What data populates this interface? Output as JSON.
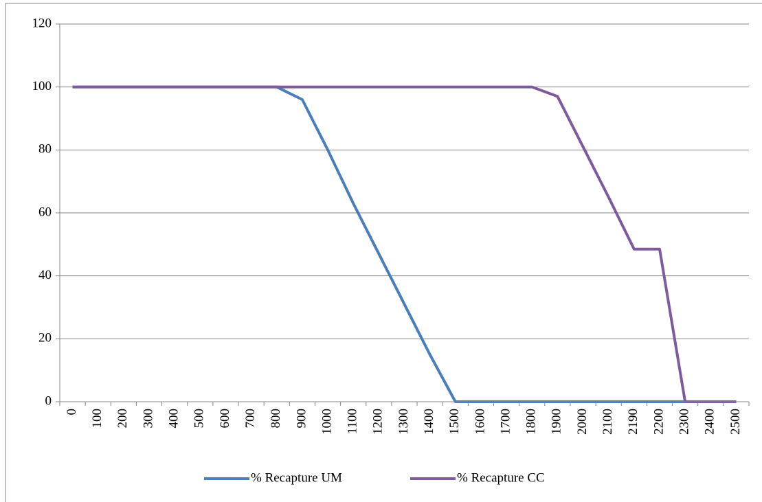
{
  "chart_data": {
    "type": "line",
    "categories": [
      "0",
      "100",
      "200",
      "300",
      "400",
      "500",
      "600",
      "700",
      "800",
      "900",
      "1000",
      "1100",
      "1200",
      "1300",
      "1400",
      "1500",
      "1600",
      "1700",
      "1800",
      "1900",
      "2000",
      "2100",
      "2190",
      "2200",
      "2300",
      "2400",
      "2500"
    ],
    "series": [
      {
        "name": "% Recapture UM",
        "color": "#4a7ebb",
        "values": [
          100,
          100,
          100,
          100,
          100,
          100,
          100,
          100,
          100,
          96,
          80,
          63,
          47,
          31,
          15,
          0,
          0,
          0,
          0,
          0,
          0,
          0,
          0,
          0,
          0,
          0,
          0
        ]
      },
      {
        "name": "% Recapture CC",
        "color": "#7d5b9e",
        "values": [
          100,
          100,
          100,
          100,
          100,
          100,
          100,
          100,
          100,
          100,
          100,
          100,
          100,
          100,
          100,
          100,
          100,
          100,
          100,
          97,
          81,
          65,
          48.5,
          48.5,
          0,
          0,
          0
        ]
      }
    ],
    "ylim": [
      0,
      120
    ],
    "yticks": [
      0,
      20,
      40,
      60,
      80,
      100,
      120
    ],
    "grid": true,
    "legend": "bottom"
  }
}
